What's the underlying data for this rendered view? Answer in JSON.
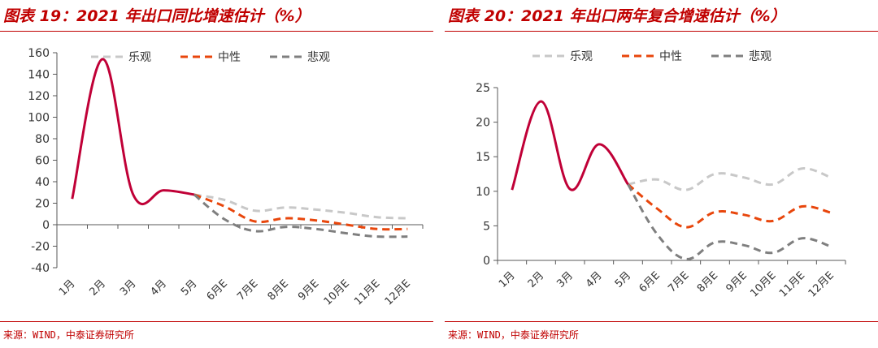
{
  "chart_data": [
    {
      "type": "line",
      "title": "图表 19：2021 年出口同比增速估计（%）",
      "source": "来源：WIND，中泰证券研究所",
      "categories": [
        "1月",
        "2月",
        "3月",
        "4月",
        "5月",
        "6月E",
        "7月E",
        "8月E",
        "9月E",
        "10月E",
        "11月E",
        "12月E"
      ],
      "ylim": [
        -40,
        160
      ],
      "yticks": [
        160,
        140,
        120,
        100,
        80,
        60,
        40,
        20,
        0,
        -20,
        -40
      ],
      "legend_position": "top",
      "series": [
        {
          "name": "乐观",
          "color": "#C8C8C8",
          "dash": true,
          "values": [
            null,
            null,
            null,
            null,
            28,
            23,
            13,
            16,
            14,
            11,
            7,
            6
          ]
        },
        {
          "name": "中性",
          "color": "#E8460C",
          "dash": true,
          "values": [
            null,
            null,
            null,
            null,
            28,
            17,
            3,
            6,
            4,
            0,
            -4,
            -4
          ]
        },
        {
          "name": "悲观",
          "color": "#7F7F7F",
          "dash": true,
          "values": [
            null,
            null,
            null,
            null,
            28,
            5,
            -6,
            -2,
            -4,
            -8,
            -11,
            -11
          ]
        },
        {
          "name": "",
          "color": "#C00037",
          "dash": false,
          "values": [
            24,
            154,
            28,
            32,
            28,
            null,
            null,
            null,
            null,
            null,
            null,
            null
          ]
        }
      ]
    },
    {
      "type": "line",
      "title": "图表 20：2021 年出口两年复合增速估计（%）",
      "source": "来源：WIND，中泰证券研究所",
      "categories": [
        "1月",
        "2月",
        "3月",
        "4月",
        "5月",
        "6月E",
        "7月E",
        "8月E",
        "9月E",
        "10月E",
        "11月E",
        "12月E"
      ],
      "ylim": [
        0,
        25
      ],
      "yticks": [
        25,
        20,
        15,
        10,
        5,
        0
      ],
      "legend_position": "top",
      "series": [
        {
          "name": "乐观",
          "color": "#C8C8C8",
          "dash": true,
          "values": [
            null,
            null,
            null,
            null,
            11,
            11.7,
            10.2,
            12.5,
            12,
            11,
            13.3,
            12
          ]
        },
        {
          "name": "中性",
          "color": "#E8460C",
          "dash": true,
          "values": [
            null,
            null,
            null,
            null,
            11,
            7.5,
            4.8,
            7,
            6.6,
            5.7,
            7.8,
            6.9
          ]
        },
        {
          "name": "悲观",
          "color": "#7F7F7F",
          "dash": true,
          "values": [
            null,
            null,
            null,
            null,
            11,
            3.8,
            0.2,
            2.6,
            2.2,
            1.1,
            3.2,
            2
          ]
        },
        {
          "name": "",
          "color": "#C00037",
          "dash": false,
          "values": [
            10.2,
            23,
            10.3,
            16.8,
            11,
            null,
            null,
            null,
            null,
            null,
            null,
            null
          ]
        }
      ]
    }
  ]
}
